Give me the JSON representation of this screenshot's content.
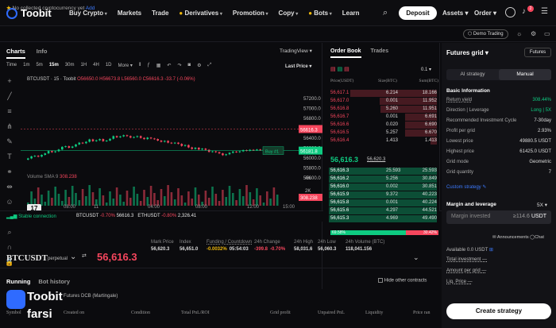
{
  "brand": {
    "name": "Toobit",
    "watermark_line1": "Toobit",
    "watermark_line2": "farsi",
    "accent": "#2f6bff"
  },
  "nav": {
    "items": [
      "Buy Crypto",
      "Markets",
      "Trade",
      "Derivatives",
      "Promotion",
      "Copy",
      "Bots",
      "Learn"
    ]
  },
  "top_right": {
    "deposit": "Deposit",
    "assets": "Assets",
    "order": "Order",
    "notif_count": "2"
  },
  "notice": {
    "text": "No collected cryptocurrency yet",
    "add": "Add"
  },
  "demo_trading": "Demo Trading",
  "chart_tabs": [
    "Charts",
    "Info"
  ],
  "tradingview": "TradingView",
  "timeframes": [
    "Time",
    "1m",
    "5m",
    "15m",
    "30m",
    "1H",
    "4H",
    "1D",
    "More"
  ],
  "last_price_label": "Last Price",
  "ohlc": {
    "symbol": "BTCUSDT · 15 · Toobit",
    "o": "O56650.0",
    "h": "H56673.8",
    "l": "L56560.0",
    "c": "C56616.3",
    "chg": "-33.7 (-0.06%)"
  },
  "volume_label": {
    "name": "Volume SMA 9",
    "value": "308.238"
  },
  "price_axis": [
    "57200.0",
    "57000.0",
    "56800.0",
    "56600.0",
    "56400.0",
    "56200.0",
    "56000.0",
    "55800.0",
    "55600.0"
  ],
  "price_markers": {
    "current": "56616.3",
    "buy": "56181.8",
    "buy_label": "Buy #1"
  },
  "vol_axis": [
    "4K",
    "2K",
    "308.238"
  ],
  "time_axis": [
    "08:00",
    "11",
    "04:00",
    "08:00",
    "12:00",
    "15:00"
  ],
  "status": {
    "connection": "Stable connection",
    "tickers": [
      {
        "sym": "BTCUSDT",
        "chg": "-0.70%",
        "price": "56616.3"
      },
      {
        "sym": "ETHUSDT",
        "chg": "-0.80%",
        "price": "2,326.41"
      }
    ]
  },
  "orderbook": {
    "tabs": [
      "Order Book",
      "Trades"
    ],
    "precision": "0.1",
    "headers": [
      "Price(USDT)",
      "Size(BTC)",
      "Sum(BTC)"
    ],
    "asks": [
      [
        "56,617.1",
        "6.214",
        "18.166"
      ],
      [
        "56,617.0",
        "0.001",
        "11.952"
      ],
      [
        "56,616.8",
        "5.260",
        "11.951"
      ],
      [
        "56,616.7",
        "0.001",
        "6.691"
      ],
      [
        "56,616.6",
        "0.020",
        "6.690"
      ],
      [
        "56,616.5",
        "5.257",
        "6.670"
      ],
      [
        "56,616.4",
        "1.413",
        "1.413"
      ]
    ],
    "mid_price": "56,616.3",
    "mid_sub": "56,620.3",
    "bids": [
      [
        "56,616.3",
        "25.593",
        "25.593"
      ],
      [
        "56,616.2",
        "5.256",
        "30.849"
      ],
      [
        "56,616.0",
        "0.002",
        "30.851"
      ],
      [
        "56,615.9",
        "9.372",
        "40.223"
      ],
      [
        "56,615.8",
        "0.001",
        "40.224"
      ],
      [
        "56,615.6",
        "4.297",
        "44.521"
      ],
      [
        "56,615.3",
        "4.969",
        "49.490"
      ]
    ],
    "ratio_green": "69.58%",
    "ratio_red": "30.42%"
  },
  "pair": {
    "name": "BTCUSDT",
    "type": "perpetual",
    "price": "56,616.3",
    "stats": [
      {
        "label": "Mark Price",
        "value": "56,620.3"
      },
      {
        "label": "Index",
        "value": "56,651.0"
      },
      {
        "label": "Funding / Countdown",
        "value": "-0.0032%",
        "value2": "05:54:03"
      },
      {
        "label": "24h Change",
        "value": "-399.8",
        "value2": "-0.70%"
      },
      {
        "label": "24h High",
        "value": "58,031.6"
      },
      {
        "label": "24h Low",
        "value": "56,060.3"
      },
      {
        "label": "24h Volume (BTC)",
        "value": "118,041.156"
      }
    ]
  },
  "running": {
    "tabs": [
      "Running",
      "Bot history"
    ],
    "hide_others": "Hide other contracts",
    "row_text": "Futures DCB (Martingale)"
  },
  "table_headers": [
    "Symbol",
    "Created on",
    "Condition",
    "Total PnL/ROI",
    "Grid profit",
    "Unpaired PnL",
    "Liquidity",
    "Price ran"
  ],
  "gridbot": {
    "title": "Futures grid",
    "futures": "Futures",
    "modes": [
      "AI strategy",
      "Manual"
    ],
    "basic_title": "Basic Information",
    "rows": [
      {
        "k": "Return yield",
        "v": "308.44%"
      },
      {
        "k": "Direction | Leverage",
        "v": "Long | 5X"
      },
      {
        "k": "Recommended Investment Cycle",
        "v": "7-30day"
      },
      {
        "k": "Profit per grid",
        "v": "2.93%"
      },
      {
        "k": "Lowest price",
        "v": "49880.5 USDT"
      },
      {
        "k": "Highest price",
        "v": "61425.0 USDT"
      },
      {
        "k": "Grid mode",
        "v": "Geometric"
      },
      {
        "k": "Grid quantity",
        "v": "7"
      }
    ],
    "custom": "Custom strategy",
    "margin_title": "Margin and leverage",
    "leverage": "5X",
    "invest_label": "Margin invested",
    "invest_value": "≥114.6",
    "invest_unit": "USDT",
    "announcements": "Announcements",
    "chat": "Chat",
    "available": "Available 0.0 USDT",
    "total_investment": "Total investment —",
    "amount_per_grid": "Amount per grid —",
    "liq_price": "Liq. Price —",
    "create": "Create strategy"
  },
  "colors": {
    "green": "#0ecb81",
    "red": "#f6465d",
    "bg": "#0b0b0e"
  }
}
